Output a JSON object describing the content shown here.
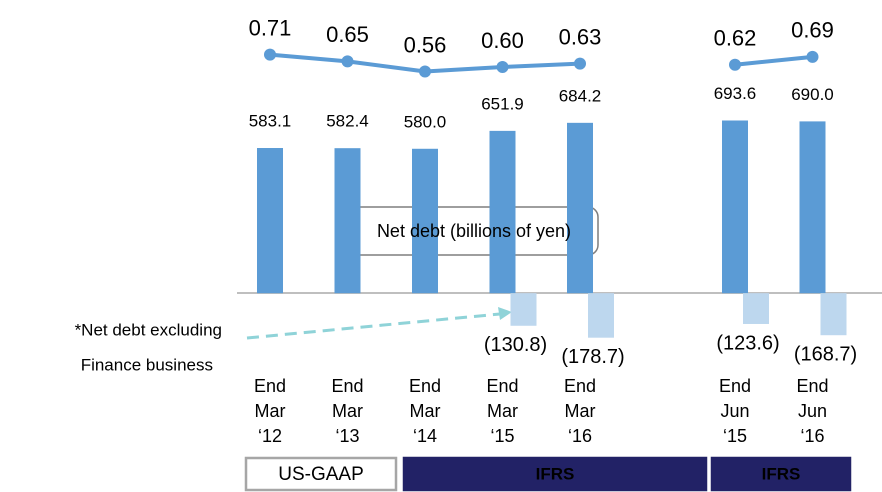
{
  "chart_data": {
    "type": "bar",
    "categories": [
      [
        "End",
        "Mar",
        "‘12"
      ],
      [
        "End",
        "Mar",
        "‘13"
      ],
      [
        "End",
        "Mar",
        "‘14"
      ],
      [
        "End",
        "Mar",
        "‘15"
      ],
      [
        "End",
        "Mar",
        "‘16"
      ],
      null,
      [
        "End",
        "Jun",
        "‘15"
      ],
      [
        "End",
        "Jun",
        "‘16"
      ]
    ],
    "ylim": [
      -200,
      800
    ],
    "y2lim": [
      0.2,
      1.0
    ],
    "series": [
      {
        "name": "Net debt (billions of yen)",
        "type": "bar",
        "color": "#5b9bd5",
        "values": [
          583.1,
          582.4,
          580,
          651.9,
          684.2,
          null,
          693.6,
          690
        ],
        "value_labels": [
          "583.1",
          "582.4",
          "580.0",
          "651.9",
          "684.2",
          null,
          "693.6",
          "690.0"
        ]
      },
      {
        "type": "bar",
        "color": "#bdd7ee",
        "values": [
          null,
          null,
          null,
          -130.8,
          -178.7,
          null,
          -123.6,
          -168.7
        ],
        "value_labels": [
          null,
          null,
          null,
          "(130.8)",
          "(178.7)",
          null,
          "(123.6)",
          "(168.7)"
        ]
      },
      {
        "type": "line",
        "axis": "y2",
        "color": "#5b9bd5",
        "values": [
          0.71,
          0.65,
          0.56,
          0.6,
          0.63,
          null,
          0.62,
          0.69
        ],
        "value_labels": [
          "0.71",
          "0.65",
          "0.56",
          "0.60",
          "0.63",
          null,
          "0.62",
          "0.69"
        ]
      }
    ],
    "annotation": [
      "*Net debt excluding",
      "Finance business"
    ],
    "groups": [
      {
        "label": "US-GAAP",
        "style": "outline"
      },
      {
        "label": "IFRS",
        "style": "filled"
      },
      {
        "label": "IFRS",
        "style": "filled"
      }
    ]
  }
}
